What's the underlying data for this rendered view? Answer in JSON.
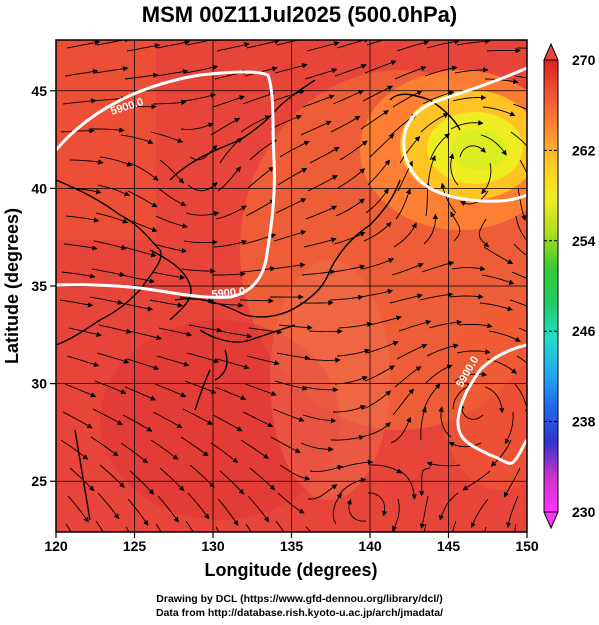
{
  "title": "MSM 00Z11Jul2025 (500.0hPa)",
  "map": {
    "lon_range": [
      120,
      150
    ],
    "lat_range": [
      22.4,
      47.6
    ],
    "x_ticks": [
      "120",
      "125",
      "130",
      "135",
      "140",
      "145",
      "150"
    ],
    "x_tick_values": [
      120,
      125,
      130,
      135,
      140,
      145,
      150
    ],
    "y_ticks": [
      "25",
      "30",
      "35",
      "40",
      "45"
    ],
    "y_tick_values": [
      25,
      30,
      35,
      40,
      45
    ],
    "xlabel": "Longitude (degrees)",
    "ylabel": "Latitude  (degrees)",
    "field": "temperature",
    "streamlines": "wind",
    "contour_labels": [
      "5900.0",
      "5900.0",
      "5900.0"
    ]
  },
  "colorbar": {
    "min": 230,
    "max": 270,
    "ticks": [
      "270",
      "262",
      "254",
      "246",
      "238",
      "230"
    ],
    "tick_values": [
      270,
      262,
      254,
      246,
      238,
      230
    ],
    "colors": [
      "#ff33ff",
      "#cc33cc",
      "#3333cc",
      "#2266ee",
      "#22aaee",
      "#22ddcc",
      "#22cc66",
      "#33cc33",
      "#aadd22",
      "#eeee22",
      "#ffcc22",
      "#ff8833",
      "#ee5533",
      "#dd2222"
    ]
  },
  "credits": {
    "line1": "Drawing by DCL (https://www.gfd-dennou.org/library/dcl/)",
    "line2": "Data from http://database.rish.kyoto-u.ac.jp/arch/jmadata/"
  }
}
